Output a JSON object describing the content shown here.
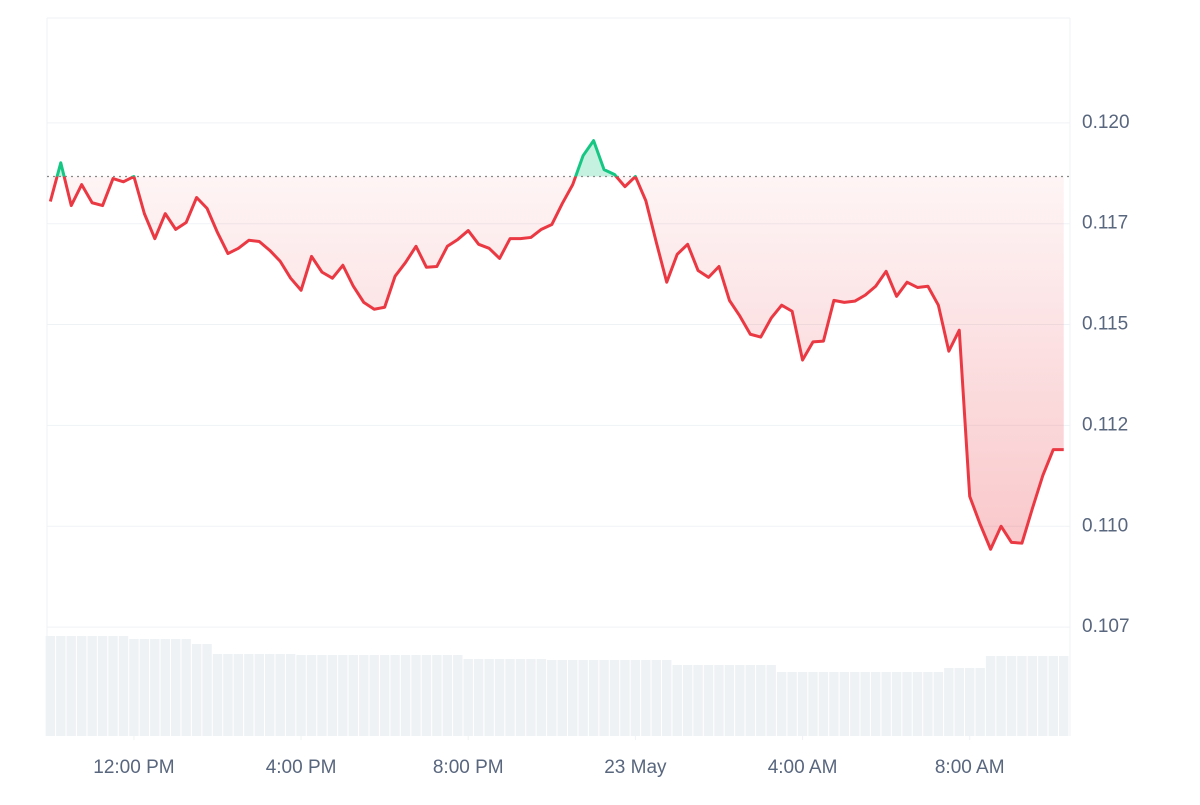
{
  "chart_data": {
    "type": "line",
    "x": [
      10,
      10.25,
      10.5,
      10.75,
      11,
      11.25,
      11.5,
      11.75,
      12,
      12.25,
      12.5,
      12.75,
      13,
      13.25,
      13.5,
      13.75,
      14,
      14.25,
      14.5,
      14.75,
      15,
      15.25,
      15.5,
      15.75,
      16,
      16.25,
      16.5,
      16.75,
      17,
      17.25,
      17.5,
      17.75,
      18,
      18.25,
      18.5,
      18.75,
      19,
      19.25,
      19.5,
      19.75,
      20,
      20.25,
      20.5,
      20.75,
      21,
      21.25,
      21.5,
      21.75,
      22,
      22.25,
      22.5,
      22.75,
      23,
      23.25,
      23.5,
      23.75,
      24,
      24.25,
      24.5,
      24.75,
      25,
      25.25,
      25.5,
      25.75,
      26,
      26.25,
      26.5,
      26.75,
      27,
      27.25,
      27.5,
      27.75,
      28,
      28.25,
      28.5,
      28.75,
      29,
      29.25,
      29.5,
      29.75,
      30,
      30.25,
      30.5,
      30.75,
      31,
      31.25,
      31.5,
      31.75,
      32,
      32.25,
      32.5,
      32.75,
      33,
      33.25,
      33.5,
      33.75,
      34,
      34.25
    ],
    "values": [
      0.11805,
      0.11901,
      0.11795,
      0.11847,
      0.11802,
      0.11795,
      0.11862,
      0.11854,
      0.11867,
      0.11775,
      0.11713,
      0.11775,
      0.11736,
      0.11753,
      0.11815,
      0.11788,
      0.11728,
      0.11676,
      0.11689,
      0.11709,
      0.11706,
      0.11684,
      0.11657,
      0.11615,
      0.11585,
      0.11669,
      0.1163,
      0.11615,
      0.11647,
      0.11595,
      0.11555,
      0.11538,
      0.11543,
      0.1162,
      0.11654,
      0.11694,
      0.11642,
      0.11644,
      0.11694,
      0.11711,
      0.11733,
      0.11699,
      0.11689,
      0.11664,
      0.11713,
      0.11713,
      0.11716,
      0.11736,
      0.11748,
      0.118,
      0.11847,
      0.11919,
      0.11956,
      0.11884,
      0.11872,
      0.11842,
      0.11867,
      0.11807,
      0.11704,
      0.11605,
      0.11674,
      0.11699,
      0.11634,
      0.11617,
      0.11644,
      0.1156,
      0.11521,
      0.11476,
      0.11469,
      0.11516,
      0.11548,
      0.11533,
      0.11412,
      0.11457,
      0.11459,
      0.1156,
      0.11555,
      0.11558,
      0.11573,
      0.11595,
      0.11632,
      0.1157,
      0.11605,
      0.11592,
      0.11595,
      0.11548,
      0.11434,
      0.11486,
      0.11074,
      0.11005,
      0.10943,
      0.11,
      0.1096,
      0.10958,
      0.11044,
      0.11126,
      0.1119,
      0.1119
    ],
    "volume": [
      100,
      100,
      100,
      100,
      100,
      100,
      100,
      100,
      97,
      97,
      97,
      97,
      97,
      97,
      92,
      92,
      82,
      82,
      82,
      82,
      82,
      82,
      82,
      82,
      81,
      81,
      81,
      81,
      81,
      81,
      81,
      81,
      81,
      81,
      81,
      81,
      81,
      81,
      81,
      81,
      77,
      77,
      77,
      77,
      77,
      77,
      77,
      77,
      76,
      76,
      76,
      76,
      76,
      76,
      76,
      76,
      76,
      76,
      76,
      76,
      71,
      71,
      71,
      71,
      71,
      71,
      71,
      71,
      71,
      71,
      64,
      64,
      64,
      64,
      64,
      64,
      64,
      64,
      64,
      64,
      64,
      64,
      64,
      64,
      64,
      64,
      68,
      68,
      68,
      68,
      80,
      80,
      80,
      80,
      80,
      80,
      80,
      80
    ],
    "baseline": 0.11867,
    "up_color": "#16c784",
    "down_color": "#ea3943",
    "volume_color": "#eff2f5",
    "xlim": [
      9.92,
      34.4
    ],
    "xticks": [
      {
        "value": 12,
        "label": "12:00 PM"
      },
      {
        "value": 16,
        "label": "4:00 PM"
      },
      {
        "value": 20,
        "label": "8:00 PM"
      },
      {
        "value": 24,
        "label": "23 May"
      },
      {
        "value": 28,
        "label": "4:00 AM"
      },
      {
        "value": 32,
        "label": "8:00 AM"
      }
    ],
    "ylim": [
      0.1048,
      0.1226
    ],
    "yticks": [
      {
        "value": 0.1075,
        "label": "0.107"
      },
      {
        "value": 0.11,
        "label": "0.110"
      },
      {
        "value": 0.1125,
        "label": "0.112"
      },
      {
        "value": 0.115,
        "label": "0.115"
      },
      {
        "value": 0.1175,
        "label": "0.117"
      },
      {
        "value": 0.12,
        "label": "0.120"
      }
    ],
    "grid": true
  }
}
